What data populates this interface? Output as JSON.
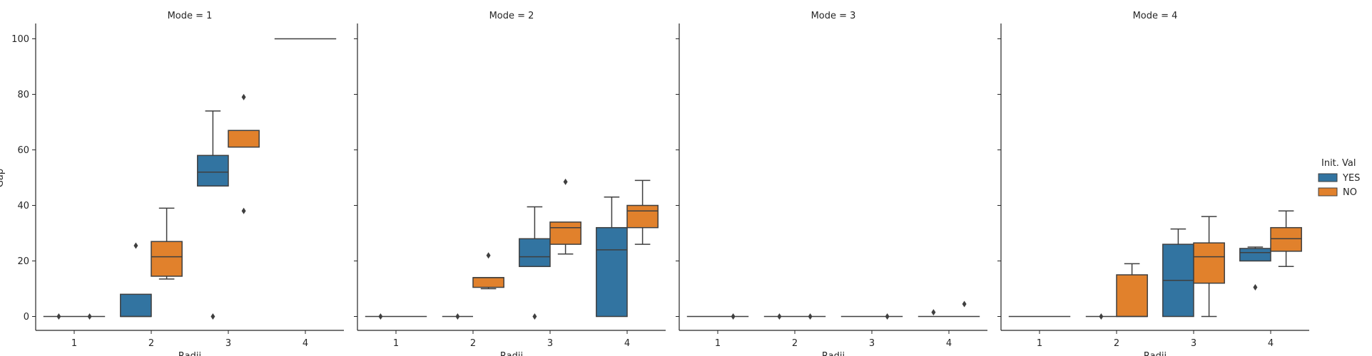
{
  "chart_data": {
    "type": "box",
    "ylabel": "Gap",
    "xlabel": "Radii",
    "categories": [
      "1",
      "2",
      "3",
      "4"
    ],
    "y_ticks": [
      0,
      20,
      40,
      60,
      80,
      100
    ],
    "ylim": [
      -5,
      105
    ],
    "grid": false,
    "legend": {
      "title": "Init. Val",
      "placement": "right",
      "entries": [
        {
          "name": "YES",
          "color": "#3274a1"
        },
        {
          "name": "NO",
          "color": "#e1812c"
        }
      ]
    },
    "panels": [
      {
        "title": "Mode = 1",
        "boxes": [
          {
            "cat": 0,
            "series": 0,
            "q1": 0,
            "med": 0,
            "q3": 0,
            "lo": 0,
            "hi": 0,
            "outliers": [
              0
            ]
          },
          {
            "cat": 0,
            "series": 1,
            "q1": 0,
            "med": 0,
            "q3": 0,
            "lo": 0,
            "hi": 0,
            "outliers": [
              0
            ]
          },
          {
            "cat": 1,
            "series": 0,
            "q1": 0,
            "med": 0,
            "q3": 8,
            "lo": 0,
            "hi": 8,
            "outliers": [
              25.5
            ]
          },
          {
            "cat": 1,
            "series": 1,
            "q1": 14.5,
            "med": 21.5,
            "q3": 27,
            "lo": 13.5,
            "hi": 39,
            "outliers": []
          },
          {
            "cat": 2,
            "series": 0,
            "q1": 47,
            "med": 52,
            "q3": 58,
            "lo": 47,
            "hi": 74,
            "outliers": [
              0
            ]
          },
          {
            "cat": 2,
            "series": 1,
            "q1": 61,
            "med": 67,
            "q3": 67,
            "lo": 61,
            "hi": 67,
            "outliers": [
              79,
              38
            ]
          },
          {
            "cat": 3,
            "series": 0,
            "q1": 100,
            "med": 100,
            "q3": 100,
            "lo": 100,
            "hi": 100,
            "outliers": []
          },
          {
            "cat": 3,
            "series": 1,
            "q1": 100,
            "med": 100,
            "q3": 100,
            "lo": 100,
            "hi": 100,
            "outliers": []
          }
        ]
      },
      {
        "title": "Mode = 2",
        "boxes": [
          {
            "cat": 0,
            "series": 0,
            "q1": 0,
            "med": 0,
            "q3": 0,
            "lo": 0,
            "hi": 0,
            "outliers": [
              0
            ]
          },
          {
            "cat": 0,
            "series": 1,
            "q1": 0,
            "med": 0,
            "q3": 0,
            "lo": 0,
            "hi": 0,
            "outliers": []
          },
          {
            "cat": 1,
            "series": 0,
            "q1": 0,
            "med": 0,
            "q3": 0,
            "lo": 0,
            "hi": 0,
            "outliers": [
              0
            ]
          },
          {
            "cat": 1,
            "series": 1,
            "q1": 10.5,
            "med": 14,
            "q3": 14,
            "lo": 10,
            "hi": 14,
            "outliers": [
              22
            ]
          },
          {
            "cat": 2,
            "series": 0,
            "q1": 18,
            "med": 21.5,
            "q3": 28,
            "lo": 18,
            "hi": 39.5,
            "outliers": [
              0
            ]
          },
          {
            "cat": 2,
            "series": 1,
            "q1": 26,
            "med": 32,
            "q3": 34,
            "lo": 22.5,
            "hi": 34,
            "outliers": [
              48.5
            ]
          },
          {
            "cat": 3,
            "series": 0,
            "q1": 0,
            "med": 24,
            "q3": 32,
            "lo": 0,
            "hi": 43,
            "outliers": []
          },
          {
            "cat": 3,
            "series": 1,
            "q1": 32,
            "med": 38,
            "q3": 40,
            "lo": 26,
            "hi": 49,
            "outliers": []
          }
        ]
      },
      {
        "title": "Mode = 3",
        "boxes": [
          {
            "cat": 0,
            "series": 0,
            "q1": 0,
            "med": 0,
            "q3": 0,
            "lo": 0,
            "hi": 0,
            "outliers": []
          },
          {
            "cat": 0,
            "series": 1,
            "q1": 0,
            "med": 0,
            "q3": 0,
            "lo": 0,
            "hi": 0,
            "outliers": [
              0
            ]
          },
          {
            "cat": 1,
            "series": 0,
            "q1": 0,
            "med": 0,
            "q3": 0,
            "lo": 0,
            "hi": 0,
            "outliers": [
              0
            ]
          },
          {
            "cat": 1,
            "series": 1,
            "q1": 0,
            "med": 0,
            "q3": 0,
            "lo": 0,
            "hi": 0,
            "outliers": [
              0
            ]
          },
          {
            "cat": 2,
            "series": 0,
            "q1": 0,
            "med": 0,
            "q3": 0,
            "lo": 0,
            "hi": 0,
            "outliers": []
          },
          {
            "cat": 2,
            "series": 1,
            "q1": 0,
            "med": 0,
            "q3": 0,
            "lo": 0,
            "hi": 0,
            "outliers": [
              0
            ]
          },
          {
            "cat": 3,
            "series": 0,
            "q1": 0,
            "med": 0,
            "q3": 0,
            "lo": 0,
            "hi": 0,
            "outliers": [
              1.5
            ]
          },
          {
            "cat": 3,
            "series": 1,
            "q1": 0,
            "med": 0,
            "q3": 0,
            "lo": 0,
            "hi": 0,
            "outliers": [
              4.5
            ]
          }
        ]
      },
      {
        "title": "Mode = 4",
        "boxes": [
          {
            "cat": 0,
            "series": 0,
            "q1": 0,
            "med": 0,
            "q3": 0,
            "lo": 0,
            "hi": 0,
            "outliers": []
          },
          {
            "cat": 0,
            "series": 1,
            "q1": 0,
            "med": 0,
            "q3": 0,
            "lo": 0,
            "hi": 0,
            "outliers": []
          },
          {
            "cat": 1,
            "series": 0,
            "q1": 0,
            "med": 0,
            "q3": 0,
            "lo": 0,
            "hi": 0,
            "outliers": [
              0
            ]
          },
          {
            "cat": 1,
            "series": 1,
            "q1": 0,
            "med": 0,
            "q3": 15,
            "lo": 0,
            "hi": 19,
            "outliers": []
          },
          {
            "cat": 2,
            "series": 0,
            "q1": 0,
            "med": 13,
            "q3": 26,
            "lo": 0,
            "hi": 31.5,
            "outliers": []
          },
          {
            "cat": 2,
            "series": 1,
            "q1": 12,
            "med": 21.5,
            "q3": 26.5,
            "lo": 0,
            "hi": 36,
            "outliers": []
          },
          {
            "cat": 3,
            "series": 0,
            "q1": 20,
            "med": 23,
            "q3": 24.5,
            "lo": 20,
            "hi": 25,
            "outliers": [
              10.5
            ]
          },
          {
            "cat": 3,
            "series": 1,
            "q1": 23.5,
            "med": 28,
            "q3": 32,
            "lo": 18,
            "hi": 38,
            "outliers": []
          }
        ]
      }
    ]
  }
}
